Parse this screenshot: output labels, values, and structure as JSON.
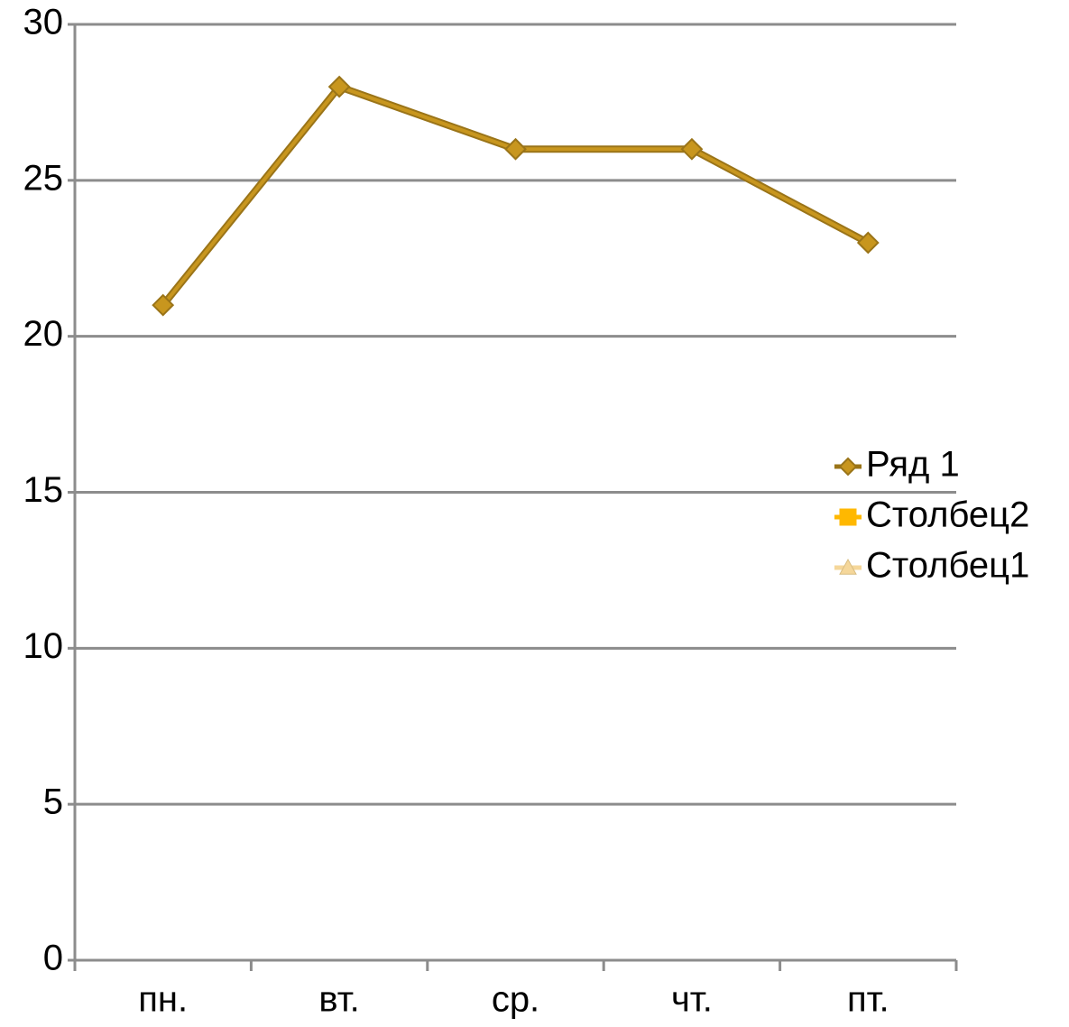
{
  "chart_data": {
    "type": "line",
    "categories": [
      "пн.",
      "вт.",
      "ср.",
      "чт.",
      "пт."
    ],
    "series": [
      {
        "name": "Ряд 1",
        "color": "#c8961e",
        "marker": "diamond",
        "values": [
          21,
          28,
          26,
          26,
          23
        ]
      },
      {
        "name": "Столбец2",
        "color": "#ffb800",
        "marker": "square",
        "values": [
          null,
          null,
          null,
          null,
          null
        ]
      },
      {
        "name": "Столбец1",
        "color": "#f5d79a",
        "marker": "triangle",
        "values": [
          null,
          null,
          null,
          null,
          null
        ]
      }
    ],
    "ylim": [
      0,
      30
    ],
    "yticks": [
      0,
      5,
      10,
      15,
      20,
      25,
      30
    ],
    "grid": true,
    "legend": "right"
  }
}
